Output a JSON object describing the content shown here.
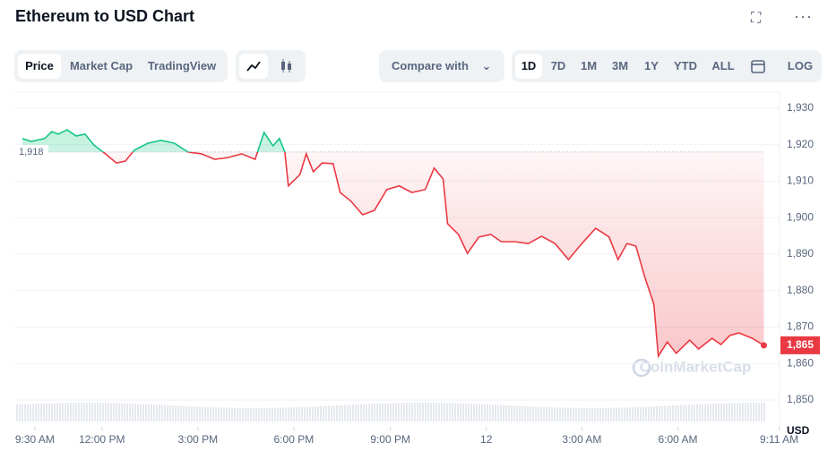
{
  "chart_data": {
    "type": "line",
    "title": "Ethereum to USD Chart",
    "y_axis_label": "USD",
    "xlim": [
      -0.5,
      23.6
    ],
    "ylim": [
      1843,
      1934
    ],
    "xticks": [
      {
        "value": 0,
        "label": "9:30 AM"
      },
      {
        "value": 2.1,
        "label": "12:00 PM"
      },
      {
        "value": 5.1,
        "label": "3:00 PM"
      },
      {
        "value": 8.1,
        "label": "6:00 PM"
      },
      {
        "value": 11.12,
        "label": "9:00 PM"
      },
      {
        "value": 14.12,
        "label": "12"
      },
      {
        "value": 17.11,
        "label": "3:00 AM"
      },
      {
        "value": 20.11,
        "label": "6:00 AM"
      },
      {
        "value": 23.28,
        "label": "9:11 AM"
      }
    ],
    "yticks": [
      {
        "value": 1850,
        "label": "1,850"
      },
      {
        "value": 1860,
        "label": "1,860"
      },
      {
        "value": 1870,
        "label": "1,870"
      },
      {
        "value": 1880,
        "label": "1,880"
      },
      {
        "value": 1890,
        "label": "1,890"
      },
      {
        "value": 1900,
        "label": "1,900"
      },
      {
        "value": 1910,
        "label": "1,910"
      },
      {
        "value": 1920,
        "label": "1,920"
      },
      {
        "value": 1930,
        "label": "1,930"
      }
    ],
    "grid": true,
    "baseline": {
      "value": 1918,
      "label": "1,918"
    },
    "last_price": {
      "value": 1865,
      "label": "1,865"
    },
    "up_color": "#16c784",
    "down_color": "#ea3943",
    "x": [
      -0.39,
      -0.11,
      0.31,
      0.53,
      0.73,
      1.01,
      1.29,
      1.57,
      1.85,
      2.21,
      2.55,
      2.83,
      3.11,
      3.53,
      3.95,
      4.37,
      4.79,
      5.21,
      5.63,
      6.05,
      6.47,
      6.89,
      7.17,
      7.45,
      7.65,
      7.82,
      7.93,
      8.29,
      8.49,
      8.71,
      8.99,
      9.33,
      9.55,
      9.89,
      10.25,
      10.62,
      11.01,
      11.4,
      11.79,
      12.21,
      12.49,
      12.77,
      12.91,
      13.25,
      13.53,
      13.89,
      14.26,
      14.59,
      15.01,
      15.43,
      15.85,
      16.27,
      16.69,
      17.11,
      17.54,
      17.96,
      18.24,
      18.52,
      18.8,
      19.08,
      19.36,
      19.5,
      19.78,
      20.06,
      20.48,
      20.76,
      21.18,
      21.46,
      21.74,
      22.02,
      22.44,
      22.8
    ],
    "values": [
      1921.7,
      1920.9,
      1921.7,
      1923.6,
      1922.9,
      1924.1,
      1922.4,
      1922.9,
      1919.9,
      1917.5,
      1915.0,
      1915.5,
      1918.5,
      1920.4,
      1921.2,
      1920.4,
      1918.0,
      1917.5,
      1916.0,
      1916.5,
      1917.5,
      1916.0,
      1923.4,
      1919.7,
      1921.7,
      1918.0,
      1908.7,
      1911.8,
      1917.5,
      1912.6,
      1915.0,
      1914.8,
      1906.9,
      1904.5,
      1900.8,
      1902.0,
      1907.7,
      1908.7,
      1906.9,
      1907.7,
      1913.6,
      1910.6,
      1898.3,
      1895.4,
      1890.2,
      1894.7,
      1895.4,
      1893.4,
      1893.4,
      1892.9,
      1894.9,
      1892.9,
      1888.5,
      1892.9,
      1897.1,
      1894.7,
      1888.5,
      1892.9,
      1892.2,
      1883.6,
      1876.3,
      1862.0,
      1865.9,
      1862.8,
      1866.4,
      1864.0,
      1866.9,
      1865.2,
      1867.7,
      1868.4,
      1866.9,
      1865.0
    ]
  },
  "ui": {
    "tabs": [
      "Price",
      "Market Cap",
      "TradingView"
    ],
    "compare": "Compare with",
    "ranges": [
      "1D",
      "7D",
      "1M",
      "3M",
      "1Y",
      "YTD",
      "ALL"
    ],
    "log": "LOG",
    "watermark": "CoinMarketCap"
  }
}
